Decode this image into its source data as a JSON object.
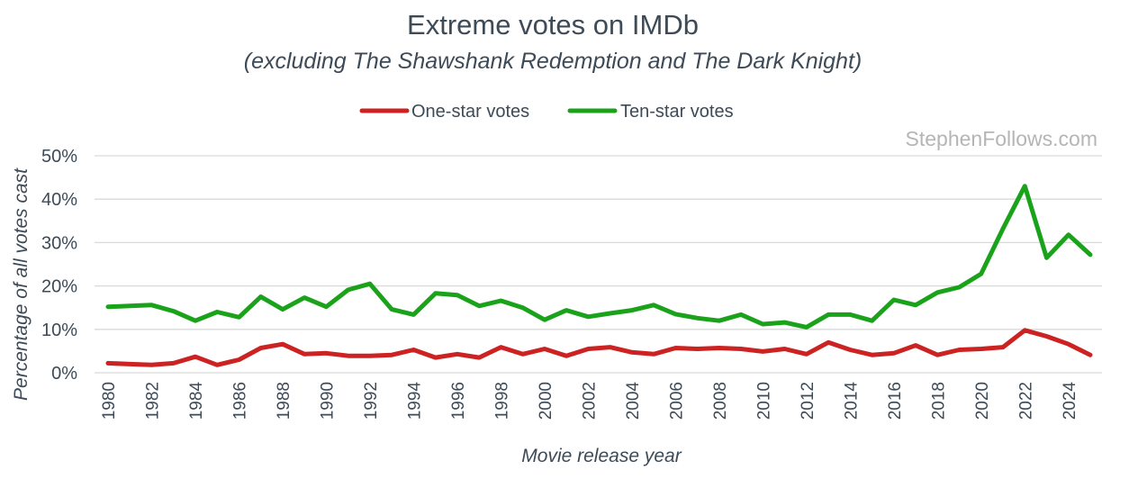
{
  "chart_data": {
    "type": "line",
    "title": "Extreme votes on IMDb",
    "subtitle": "(excluding The Shawshank Redemption and The Dark Knight)",
    "watermark": "StephenFollows.com",
    "xlabel": "Movie release year",
    "ylabel": "Percentage of all votes cast",
    "ylim": [
      0,
      50
    ],
    "yticks": [
      0,
      10,
      20,
      30,
      40,
      50
    ],
    "ytick_labels": [
      "0%",
      "10%",
      "20%",
      "30%",
      "40%",
      "50%"
    ],
    "xticks": [
      1980,
      1982,
      1984,
      1986,
      1988,
      1990,
      1992,
      1994,
      1996,
      1998,
      2000,
      2002,
      2004,
      2006,
      2008,
      2010,
      2012,
      2014,
      2016,
      2018,
      2020,
      2022,
      2024
    ],
    "grid": true,
    "legend_position": "top-center",
    "x": [
      1980,
      1981,
      1982,
      1983,
      1984,
      1985,
      1986,
      1987,
      1988,
      1989,
      1990,
      1991,
      1992,
      1993,
      1994,
      1995,
      1996,
      1997,
      1998,
      1999,
      2000,
      2001,
      2002,
      2003,
      2004,
      2005,
      2006,
      2007,
      2008,
      2009,
      2010,
      2011,
      2012,
      2013,
      2014,
      2015,
      2016,
      2017,
      2018,
      2019,
      2020,
      2021,
      2022,
      2023,
      2024,
      2025
    ],
    "series": [
      {
        "name": "One-star votes",
        "color": "#cc2222",
        "values": [
          2.2,
          2.0,
          1.8,
          2.2,
          3.7,
          1.8,
          3.0,
          5.7,
          6.6,
          4.3,
          4.5,
          3.9,
          3.9,
          4.1,
          5.3,
          3.5,
          4.3,
          3.5,
          5.9,
          4.3,
          5.5,
          3.9,
          5.5,
          5.9,
          4.7,
          4.3,
          5.7,
          5.5,
          5.7,
          5.5,
          4.9,
          5.5,
          4.3,
          7.0,
          5.3,
          4.1,
          4.5,
          6.3,
          4.1,
          5.3,
          5.5,
          5.9,
          9.8,
          8.4,
          6.6,
          4.1
        ]
      },
      {
        "name": "Ten-star votes",
        "color": "#1aa31a",
        "values": [
          15.2,
          15.4,
          15.6,
          14.2,
          12.0,
          14.0,
          12.8,
          17.5,
          14.6,
          17.3,
          15.2,
          19.1,
          20.5,
          14.6,
          13.4,
          18.3,
          17.9,
          15.4,
          16.6,
          15.0,
          12.2,
          14.4,
          12.9,
          13.7,
          14.4,
          15.6,
          13.5,
          12.6,
          12.0,
          13.4,
          11.2,
          11.6,
          10.5,
          13.4,
          13.4,
          12.0,
          16.8,
          15.6,
          18.5,
          19.7,
          22.8,
          33.2,
          43.0,
          26.5,
          31.8,
          27.2
        ]
      }
    ]
  }
}
